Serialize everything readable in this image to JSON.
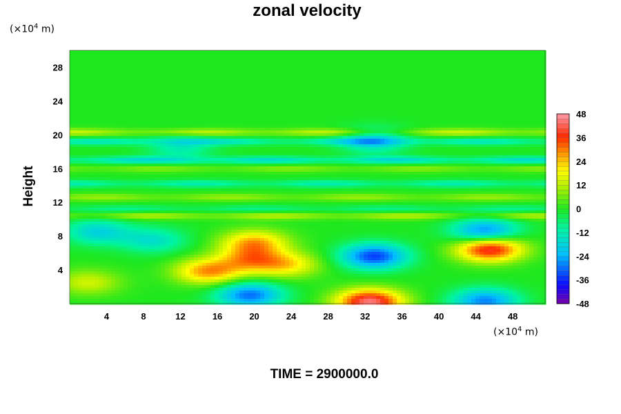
{
  "chart_data": {
    "type": "heatmap",
    "title": "zonal velocity",
    "ylabel": "Height",
    "xlabel": "",
    "x_unit": "(×10⁴ m)",
    "y_unit": "(×10⁴ m)",
    "xlim": [
      0,
      51.5
    ],
    "ylim": [
      0,
      30
    ],
    "x_ticks": [
      "4",
      "8",
      "12",
      "16",
      "20",
      "24",
      "28",
      "32",
      "36",
      "40",
      "44",
      "48"
    ],
    "y_ticks": [
      "4",
      "8",
      "12",
      "16",
      "20",
      "24",
      "28"
    ],
    "colorbar": {
      "range": [
        -48,
        48
      ],
      "ticks": [
        "48",
        "36",
        "24",
        "12",
        "0",
        "-12",
        "-24",
        "-36",
        "-48"
      ]
    },
    "features": [
      {
        "x": 32.5,
        "y": 0.2,
        "value": 45
      },
      {
        "x": 45.5,
        "y": 6.5,
        "value": 42
      },
      {
        "x": 15,
        "y": 3.8,
        "value": 28
      },
      {
        "x": 20,
        "y": 7.2,
        "value": 26
      },
      {
        "x": 19.5,
        "y": 5.2,
        "value": 22
      },
      {
        "x": 23.5,
        "y": 4.6,
        "value": 20
      },
      {
        "x": 2,
        "y": 2.5,
        "value": 14
      },
      {
        "x": 33,
        "y": 5.6,
        "value": -34
      },
      {
        "x": 45,
        "y": 8.5,
        "value": -30
      },
      {
        "x": 19.5,
        "y": 1,
        "value": -30
      },
      {
        "x": 45,
        "y": 0.3,
        "value": -28
      },
      {
        "x": 3,
        "y": 8.5,
        "value": -18
      },
      {
        "x": 9,
        "y": 7.5,
        "value": -15
      },
      {
        "x": 12,
        "y": 18.5,
        "value": -12
      },
      {
        "x": 33,
        "y": 19.3,
        "value": -18
      }
    ],
    "bands": [
      {
        "y": 20.3,
        "value": 10
      },
      {
        "y": 19.2,
        "value": -10
      },
      {
        "y": 17,
        "value": -12
      },
      {
        "y": 16,
        "value": 6
      },
      {
        "y": 14.2,
        "value": -9
      },
      {
        "y": 12.6,
        "value": 7
      },
      {
        "y": 11.2,
        "value": -6
      },
      {
        "y": 10.4,
        "value": 9
      }
    ]
  },
  "labels": {
    "title": "zonal velocity",
    "y_axis": "Height",
    "unit_prefix": "(×10",
    "unit_exp": "4",
    "unit_suffix": " m)",
    "footer": "TIME = 2900000.0"
  }
}
